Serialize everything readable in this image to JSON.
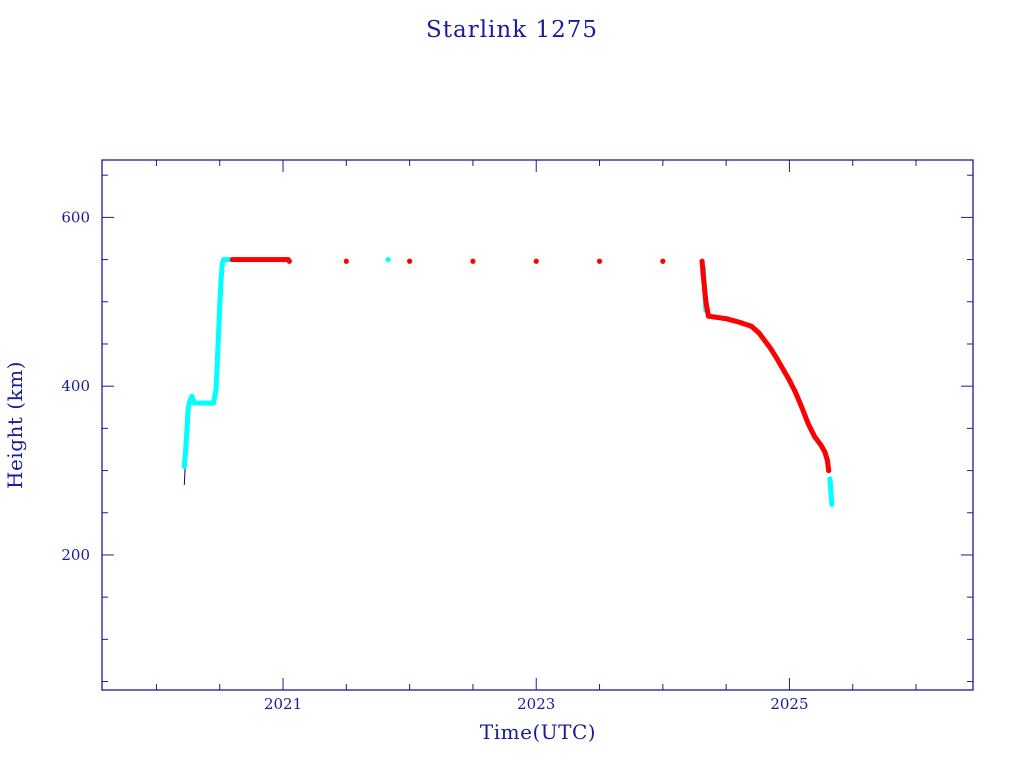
{
  "chart_data": {
    "type": "scatter",
    "title": "Starlink 1275",
    "xlabel": "Time(UTC)",
    "ylabel": "Height (km)",
    "xlim": [
      2019.57,
      2026.45
    ],
    "ylim": [
      40,
      668
    ],
    "x_ticks": [
      "2021",
      "2023",
      "2025"
    ],
    "y_ticks": [
      "200",
      "400",
      "600"
    ],
    "grid": false,
    "colors": {
      "axes": "#1a1a9c",
      "maneuver": "#00ffff",
      "stable": "#ff0000",
      "trace": "#000080"
    },
    "series": [
      {
        "color": "#00ffff",
        "points": [
          [
            2020.22,
            305
          ],
          [
            2020.23,
            322
          ],
          [
            2020.235,
            335
          ],
          [
            2020.24,
            345
          ],
          [
            2020.245,
            358
          ],
          [
            2020.25,
            372
          ],
          [
            2020.26,
            380
          ],
          [
            2020.28,
            388
          ],
          [
            2020.3,
            380
          ],
          [
            2020.35,
            380
          ],
          [
            2020.4,
            380
          ],
          [
            2020.45,
            380
          ],
          [
            2020.47,
            395
          ],
          [
            2020.48,
            425
          ],
          [
            2020.49,
            460
          ],
          [
            2020.5,
            495
          ],
          [
            2020.51,
            525
          ],
          [
            2020.52,
            545
          ],
          [
            2020.53,
            550
          ],
          [
            2020.56,
            550
          ],
          [
            2020.59,
            550
          ],
          [
            2021.83,
            550
          ],
          [
            2024.32,
            540
          ],
          [
            2024.34,
            490
          ],
          [
            2025.32,
            290
          ],
          [
            2025.325,
            280
          ],
          [
            2025.33,
            270
          ],
          [
            2025.335,
            260
          ]
        ]
      },
      {
        "color": "#ff0000",
        "points": [
          [
            2020.6,
            550
          ],
          [
            2020.7,
            550
          ],
          [
            2020.8,
            550
          ],
          [
            2020.9,
            550
          ],
          [
            2021.0,
            550
          ],
          [
            2021.04,
            550
          ],
          [
            2021.05,
            548
          ],
          [
            2021.5,
            548
          ],
          [
            2022.0,
            548
          ],
          [
            2022.5,
            548
          ],
          [
            2023.0,
            548
          ],
          [
            2023.5,
            548
          ],
          [
            2024.0,
            548
          ],
          [
            2024.31,
            548
          ],
          [
            2024.32,
            530
          ],
          [
            2024.33,
            515
          ],
          [
            2024.34,
            500
          ],
          [
            2024.36,
            483
          ],
          [
            2024.5,
            480
          ],
          [
            2024.6,
            476
          ],
          [
            2024.7,
            471
          ],
          [
            2024.76,
            463
          ],
          [
            2024.8,
            455
          ],
          [
            2024.85,
            445
          ],
          [
            2024.9,
            433
          ],
          [
            2024.95,
            420
          ],
          [
            2025.0,
            407
          ],
          [
            2025.05,
            392
          ],
          [
            2025.1,
            374
          ],
          [
            2025.15,
            355
          ],
          [
            2025.2,
            340
          ],
          [
            2025.25,
            330
          ],
          [
            2025.28,
            322
          ],
          [
            2025.3,
            312
          ],
          [
            2025.31,
            300
          ]
        ]
      }
    ]
  }
}
